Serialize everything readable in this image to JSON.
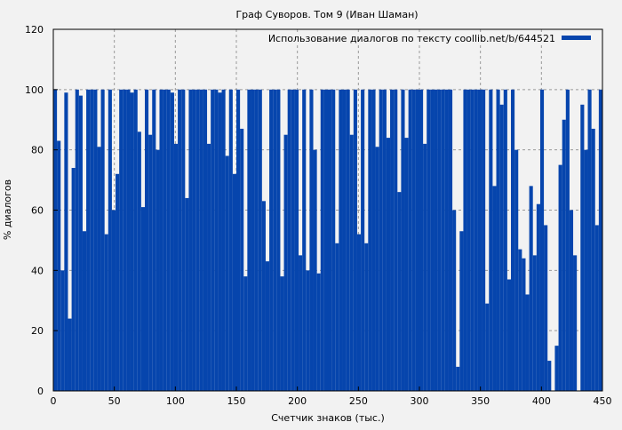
{
  "chart_data": {
    "type": "bar",
    "title": "Граф Суворов. Том 9 (Иван Шаман)",
    "xlabel": "Счетчик знаков (тыс.)",
    "ylabel": "% диалогов",
    "xlim": [
      0,
      450
    ],
    "ylim": [
      0,
      120
    ],
    "xticks": [
      0,
      50,
      100,
      150,
      200,
      250,
      300,
      350,
      400,
      450
    ],
    "yticks": [
      0,
      20,
      40,
      60,
      80,
      100,
      120
    ],
    "grid": true,
    "legend_position": "top-right",
    "bar_color": "#0645ad",
    "series": [
      {
        "name": "Использование диалогов по тексту coollib.net/b/644521",
        "x_step": 3,
        "values": [
          100,
          83,
          40,
          99,
          24,
          74,
          100,
          98,
          53,
          100,
          100,
          100,
          81,
          100,
          52,
          100,
          60,
          72,
          100,
          100,
          100,
          99,
          100,
          86,
          61,
          100,
          85,
          100,
          80,
          100,
          100,
          100,
          99,
          82,
          100,
          100,
          64,
          100,
          100,
          100,
          100,
          100,
          82,
          100,
          100,
          99,
          100,
          78,
          100,
          72,
          100,
          87,
          38,
          100,
          100,
          100,
          100,
          63,
          43,
          100,
          100,
          100,
          38,
          85,
          100,
          100,
          100,
          45,
          100,
          40,
          100,
          80,
          39,
          100,
          100,
          100,
          100,
          49,
          100,
          100,
          100,
          85,
          100,
          52,
          100,
          49,
          100,
          100,
          81,
          100,
          100,
          84,
          100,
          100,
          66,
          100,
          84,
          100,
          100,
          100,
          100,
          82,
          100,
          100,
          100,
          100,
          100,
          100,
          100,
          60,
          8,
          53,
          100,
          100,
          100,
          100,
          100,
          100,
          29,
          100,
          68,
          100,
          95,
          100,
          37,
          100,
          80,
          47,
          44,
          32,
          68,
          45,
          62,
          100,
          55,
          10,
          0,
          15,
          75,
          90,
          100,
          60,
          45,
          0,
          95,
          80,
          100,
          87,
          55,
          100
        ]
      }
    ]
  }
}
